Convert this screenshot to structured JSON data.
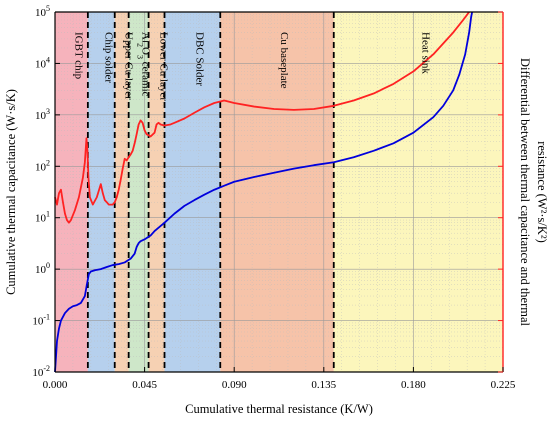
{
  "chart_data": {
    "type": "line",
    "xlabel": "Cumulative thermal resistance (K/W)",
    "ylabel_left": "Cumulative thermal capacitance (W·s/K)",
    "ylabel_right_line1": "Differential between thermal capacitance and thermal",
    "ylabel_right_line2": "resistance (W²·s/K²)",
    "xlim": [
      0.0,
      0.225
    ],
    "ylim": [
      0.01,
      100000
    ],
    "y_scale": "log",
    "grid": true,
    "x_ticks": [
      {
        "value": 0.0,
        "label": "0.000"
      },
      {
        "value": 0.045,
        "label": "0.045"
      },
      {
        "value": 0.09,
        "label": "0.090"
      },
      {
        "value": 0.135,
        "label": "0.135"
      },
      {
        "value": 0.18,
        "label": "0.180"
      },
      {
        "value": 0.225,
        "label": "0.225"
      }
    ],
    "y_ticks": [
      {
        "value": 0.01,
        "base": "10",
        "exp": "-2"
      },
      {
        "value": 0.1,
        "base": "10",
        "exp": "-1"
      },
      {
        "value": 1,
        "base": "10",
        "exp": "0"
      },
      {
        "value": 10,
        "base": "10",
        "exp": "1"
      },
      {
        "value": 100,
        "base": "10",
        "exp": "2"
      },
      {
        "value": 1000,
        "base": "10",
        "exp": "3"
      },
      {
        "value": 10000,
        "base": "10",
        "exp": "4"
      },
      {
        "value": 100000,
        "base": "10",
        "exp": "5"
      }
    ],
    "regions": [
      {
        "label": "IGBT chip",
        "x0": 0.0,
        "x1": 0.0165,
        "color": "#f4a6b0"
      },
      {
        "label": "Chip solder",
        "x0": 0.0165,
        "x1": 0.03,
        "color": "#a9c8ea"
      },
      {
        "label": "Upper Cu layer",
        "x0": 0.03,
        "x1": 0.037,
        "color": "#f5c9a6"
      },
      {
        "label": "Al2O3 ceramic",
        "x0": 0.037,
        "x1": 0.047,
        "color": "#c5e3c0"
      },
      {
        "label": "Lower Cu layer",
        "x0": 0.047,
        "x1": 0.055,
        "color": "#f5c9a6"
      },
      {
        "label": "DBC Solder",
        "x0": 0.055,
        "x1": 0.083,
        "color": "#a9c8ea"
      },
      {
        "label": "Cu baseplate",
        "x0": 0.083,
        "x1": 0.14,
        "color": "#f5b89a"
      },
      {
        "label": "Heat sink",
        "x0": 0.14,
        "x1": 0.225,
        "color": "#fbf4b0"
      }
    ],
    "boundaries": [
      0.0165,
      0.03,
      0.037,
      0.047,
      0.055,
      0.083,
      0.14
    ],
    "series": [
      {
        "color": "#0000dd",
        "x": [
          0.0,
          0.0005,
          0.001,
          0.002,
          0.003,
          0.005,
          0.007,
          0.009,
          0.011,
          0.013,
          0.015,
          0.016,
          0.017,
          0.018,
          0.02,
          0.023,
          0.026,
          0.029,
          0.032,
          0.035,
          0.038,
          0.04,
          0.041,
          0.042,
          0.043,
          0.045,
          0.048,
          0.05,
          0.055,
          0.06,
          0.065,
          0.07,
          0.075,
          0.08,
          0.085,
          0.09,
          0.1,
          0.11,
          0.12,
          0.13,
          0.14,
          0.15,
          0.16,
          0.17,
          0.18,
          0.19,
          0.195,
          0.2,
          0.203,
          0.206,
          0.208,
          0.209,
          0.2095
        ],
        "y": [
          0.01,
          0.02,
          0.04,
          0.07,
          0.1,
          0.14,
          0.17,
          0.19,
          0.2,
          0.22,
          0.3,
          0.5,
          0.8,
          0.9,
          0.95,
          1.0,
          1.1,
          1.2,
          1.25,
          1.35,
          1.6,
          2.0,
          2.7,
          3.2,
          3.5,
          3.8,
          4.5,
          5.5,
          8,
          12,
          17,
          22,
          28,
          35,
          42,
          50,
          62,
          75,
          90,
          105,
          120,
          150,
          200,
          280,
          450,
          900,
          1500,
          3000,
          6000,
          15000,
          40000,
          80000,
          100000
        ]
      },
      {
        "color": "#ff2222",
        "x": [
          0.0,
          0.001,
          0.002,
          0.003,
          0.004,
          0.005,
          0.006,
          0.007,
          0.008,
          0.01,
          0.012,
          0.014,
          0.015,
          0.0158,
          0.0163,
          0.0168,
          0.0175,
          0.019,
          0.021,
          0.023,
          0.024,
          0.025,
          0.026,
          0.027,
          0.028,
          0.029,
          0.03,
          0.031,
          0.032,
          0.033,
          0.034,
          0.035,
          0.036,
          0.037,
          0.038,
          0.039,
          0.04,
          0.041,
          0.042,
          0.043,
          0.044,
          0.045,
          0.046,
          0.048,
          0.05,
          0.051,
          0.052,
          0.053,
          0.055,
          0.058,
          0.06,
          0.065,
          0.07,
          0.075,
          0.08,
          0.085,
          0.09,
          0.1,
          0.11,
          0.12,
          0.13,
          0.14,
          0.15,
          0.16,
          0.17,
          0.18,
          0.19,
          0.2,
          0.205,
          0.208
        ],
        "y": [
          25,
          18,
          30,
          35,
          20,
          12,
          9,
          8,
          9,
          14,
          25,
          60,
          120,
          350,
          200,
          60,
          25,
          18,
          25,
          45,
          30,
          22,
          20,
          18,
          18,
          18,
          20,
          25,
          35,
          55,
          90,
          140,
          130,
          150,
          170,
          200,
          280,
          420,
          650,
          780,
          700,
          500,
          420,
          380,
          450,
          650,
          700,
          650,
          620,
          650,
          700,
          850,
          1100,
          1400,
          1700,
          1900,
          1700,
          1450,
          1300,
          1250,
          1300,
          1500,
          1900,
          2600,
          4000,
          7000,
          15000,
          40000,
          70000,
          100000
        ]
      }
    ]
  }
}
